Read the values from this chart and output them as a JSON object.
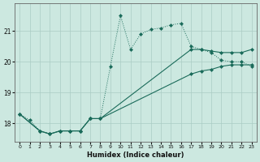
{
  "xlabel": "Humidex (Indice chaleur)",
  "background_color": "#cce8e0",
  "grid_color": "#aaccc4",
  "line_color": "#1a6b5a",
  "xlim": [
    -0.5,
    23.5
  ],
  "ylim": [
    17.4,
    21.9
  ],
  "yticks": [
    18,
    19,
    20,
    21
  ],
  "xticks": [
    0,
    1,
    2,
    3,
    4,
    5,
    6,
    7,
    8,
    9,
    10,
    11,
    12,
    13,
    14,
    15,
    16,
    17,
    18,
    19,
    20,
    21,
    22,
    23
  ],
  "line1_x": [
    0,
    1,
    2,
    3,
    4,
    5,
    6,
    7,
    8,
    9,
    10,
    11,
    12,
    13,
    14,
    15,
    16,
    17,
    18,
    19,
    20,
    21,
    22,
    23
  ],
  "line1_y": [
    18.3,
    18.1,
    17.75,
    17.65,
    17.75,
    17.75,
    17.75,
    18.15,
    18.15,
    19.85,
    21.5,
    20.4,
    20.9,
    21.05,
    21.1,
    21.2,
    21.25,
    20.5,
    20.4,
    20.3,
    20.05,
    20.0,
    20.0,
    19.85
  ],
  "line2_x": [
    0,
    2,
    3,
    4,
    5,
    6,
    7,
    8,
    17,
    18,
    19,
    20,
    21,
    22,
    23
  ],
  "line2_y": [
    18.3,
    17.75,
    17.65,
    17.75,
    17.75,
    17.75,
    18.15,
    18.15,
    20.4,
    20.4,
    20.35,
    20.3,
    20.3,
    20.3,
    20.4
  ],
  "line3_x": [
    0,
    2,
    3,
    4,
    5,
    6,
    7,
    8,
    17,
    18,
    19,
    20,
    21,
    22,
    23
  ],
  "line3_y": [
    18.3,
    17.75,
    17.65,
    17.75,
    17.75,
    17.75,
    18.15,
    18.15,
    19.6,
    19.7,
    19.75,
    19.85,
    19.9,
    19.9,
    19.9
  ]
}
